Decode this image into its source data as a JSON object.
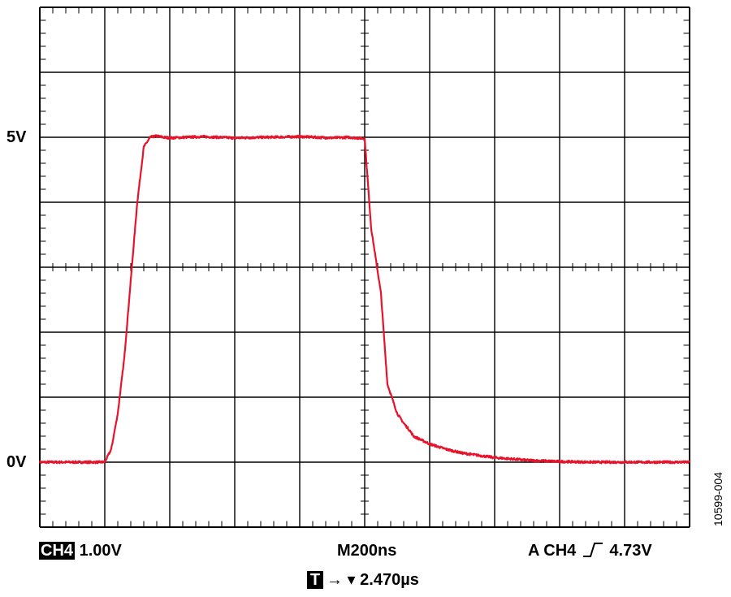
{
  "chart_data": {
    "type": "line",
    "title": "",
    "xlabel": "",
    "ylabel": "",
    "grid": true,
    "divisions": {
      "x": 10,
      "y": 8
    },
    "x_unit": "ns",
    "y_unit": "V",
    "xlim": [
      0,
      2000
    ],
    "ylim": [
      -1,
      7
    ],
    "y_tick_labels": [
      {
        "value": 5,
        "label": "5V"
      },
      {
        "value": 0,
        "label": "0V"
      }
    ],
    "series": [
      {
        "color": "#e8132b",
        "x": [
          0,
          50,
          100,
          150,
          200,
          220,
          240,
          260,
          280,
          300,
          320,
          340,
          360,
          380,
          400,
          500,
          600,
          700,
          800,
          900,
          950,
          1000,
          1020,
          1050,
          1070,
          1100,
          1120,
          1140,
          1150,
          1200,
          1250,
          1300,
          1400,
          1500,
          1600,
          1700,
          1800,
          1900,
          2000
        ],
        "y": [
          0,
          0,
          0,
          0,
          0,
          0.2,
          0.75,
          1.6,
          2.8,
          4.0,
          4.85,
          5.0,
          5.02,
          5.0,
          4.99,
          5.01,
          4.99,
          5.0,
          5.01,
          4.99,
          5.0,
          4.98,
          3.6,
          2.6,
          1.2,
          0.75,
          0.6,
          0.48,
          0.4,
          0.28,
          0.2,
          0.14,
          0.07,
          0.03,
          0.01,
          0.0,
          0.0,
          0.0,
          0.0
        ]
      }
    ]
  },
  "readouts": {
    "channel_badge": "CH4",
    "channel_scale": "1.00V",
    "timebase": "M200ns",
    "trigger_source": "A  CH4",
    "trigger_slope_icon": "rising-edge-icon",
    "trigger_level": "4.73V",
    "trigger_badge": "T",
    "trigger_arrow": "→ ▾",
    "trigger_position": "2.470µs"
  },
  "figure_id": "10599-004"
}
